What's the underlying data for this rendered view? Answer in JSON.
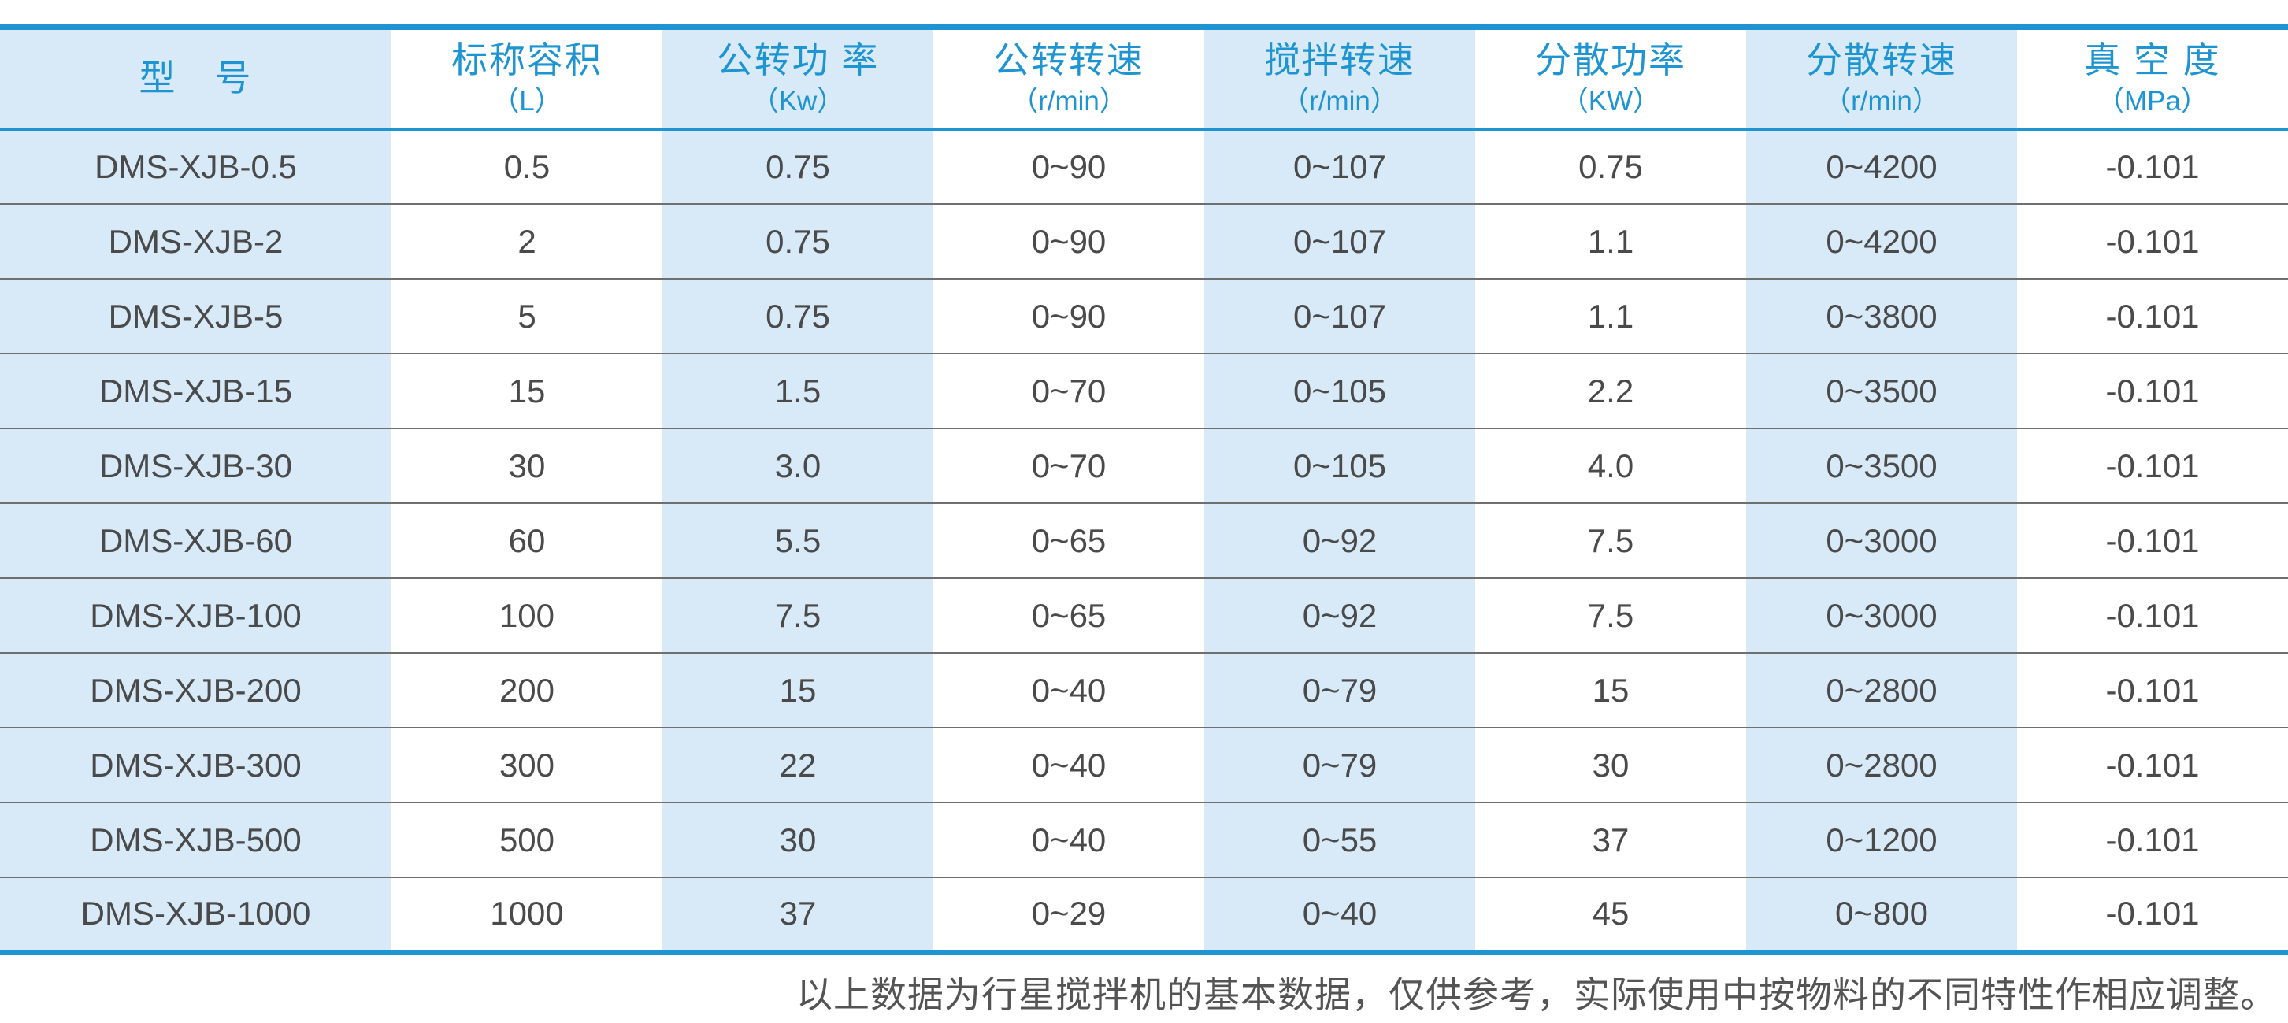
{
  "colors": {
    "accent": "#1e95d2",
    "column_band": "#d8eaf8",
    "cell_text": "#4a4a4b",
    "row_separator": "#6f6f6f",
    "footnote_text": "#545454"
  },
  "table": {
    "columns": [
      {
        "label": "型　号",
        "unit": ""
      },
      {
        "label": "标称容积",
        "unit": "（L）"
      },
      {
        "label": "公转功 率",
        "unit": "（Kw）"
      },
      {
        "label": "公转转速",
        "unit": "（r/min）"
      },
      {
        "label": "搅拌转速",
        "unit": "（r/min）"
      },
      {
        "label": "分散功率",
        "unit": "（KW）"
      },
      {
        "label": "分散转速",
        "unit": "（r/min）"
      },
      {
        "label": "真 空 度",
        "unit": "（MPa）"
      }
    ],
    "rows": [
      [
        "DMS-XJB-0.5",
        "0.5",
        "0.75",
        "0~90",
        "0~107",
        "0.75",
        "0~4200",
        "-0.101"
      ],
      [
        "DMS-XJB-2",
        "2",
        "0.75",
        "0~90",
        "0~107",
        "1.1",
        "0~4200",
        "-0.101"
      ],
      [
        "DMS-XJB-5",
        "5",
        "0.75",
        "0~90",
        "0~107",
        "1.1",
        "0~3800",
        "-0.101"
      ],
      [
        "DMS-XJB-15",
        "15",
        "1.5",
        "0~70",
        "0~105",
        "2.2",
        "0~3500",
        "-0.101"
      ],
      [
        "DMS-XJB-30",
        "30",
        "3.0",
        "0~70",
        "0~105",
        "4.0",
        "0~3500",
        "-0.101"
      ],
      [
        "DMS-XJB-60",
        "60",
        "5.5",
        "0~65",
        "0~92",
        "7.5",
        "0~3000",
        "-0.101"
      ],
      [
        "DMS-XJB-100",
        "100",
        "7.5",
        "0~65",
        "0~92",
        "7.5",
        "0~3000",
        "-0.101"
      ],
      [
        "DMS-XJB-200",
        "200",
        "15",
        "0~40",
        "0~79",
        "15",
        "0~2800",
        "-0.101"
      ],
      [
        "DMS-XJB-300",
        "300",
        "22",
        "0~40",
        "0~79",
        "30",
        "0~2800",
        "-0.101"
      ],
      [
        "DMS-XJB-500",
        "500",
        "30",
        "0~40",
        "0~55",
        "37",
        "0~1200",
        "-0.101"
      ],
      [
        "DMS-XJB-1000",
        "1000",
        "37",
        "0~29",
        "0~40",
        "45",
        "0~800",
        "-0.101"
      ]
    ]
  },
  "footnote": "以上数据为行星搅拌机的基本数据，仅供参考，实际使用中按物料的不同特性作相应调整。"
}
